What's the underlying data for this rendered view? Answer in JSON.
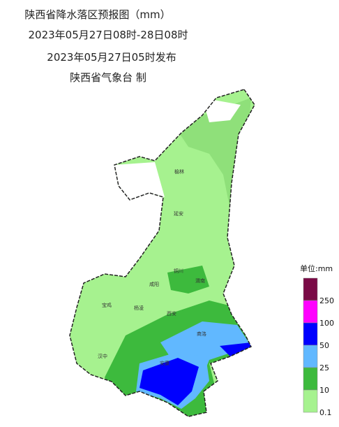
{
  "header": {
    "title": "陕西省降水落区预报图（mm）",
    "period": "2023年05月27日08时-28日08时",
    "issued": "2023年05月27日05时发布",
    "issuer": "陕西省气象台 制"
  },
  "cities": [
    "榆林",
    "延安",
    "铜川",
    "渭南",
    "咸阳",
    "西安",
    "宝鸡",
    "杨凌",
    "商洛",
    "汉中",
    "安康"
  ],
  "legend": {
    "title": "单位:mm",
    "items": [
      {
        "label": "250",
        "color": "#7a0a46"
      },
      {
        "label": "100",
        "color": "#ff00ff"
      },
      {
        "label": "50",
        "color": "#0000ff"
      },
      {
        "label": "25",
        "color": "#61b8ff"
      },
      {
        "label": "10",
        "color": "#3dba3d"
      },
      {
        "label": "0.1",
        "color": "#a6f28f"
      }
    ]
  }
}
